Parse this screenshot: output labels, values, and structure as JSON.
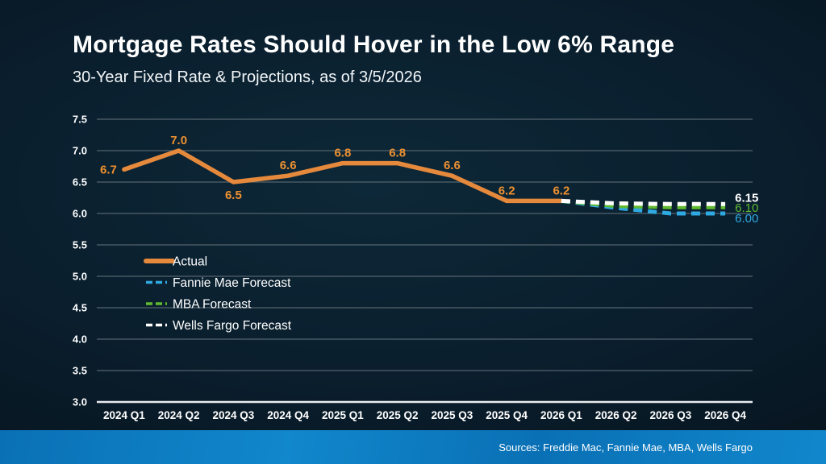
{
  "slide": {
    "title": "Mortgage Rates Should Hover in the Low 6% Range",
    "subtitle": "30-Year Fixed Rate & Projections, as of 3/5/2026",
    "source": "Sources: Freddie Mac, Fannie Mae, MBA, Wells Fargo"
  },
  "colors": {
    "bg_center": "#0D2838",
    "bg_mid": "#0A1E2D",
    "bg_edge": "#07141F",
    "footer_a": "#0A70B5",
    "footer_b": "#1187CC",
    "gridline": "#53636E",
    "axis_line": "#E9EDF0",
    "tick_label": "#FFFFFF",
    "legend_label": "#FFFFFF",
    "actual": "#E5893C",
    "actual_label": "#ED9030",
    "fannie_mae": "#2FA9E1",
    "mba": "#5FBA30",
    "wells_fargo": "#FFFFFF"
  },
  "chart_data": {
    "type": "line",
    "title": "30-Year Fixed Rate & Projections, as of 3/5/2026",
    "xlabel": "",
    "ylabel": "",
    "ylim": [
      3.0,
      7.5
    ],
    "ytick_step": 0.5,
    "grid": true,
    "legend_position": "center-left",
    "categories": [
      "2024 Q1",
      "2024 Q2",
      "2024 Q3",
      "2024 Q4",
      "2025 Q1",
      "2025 Q2",
      "2025 Q3",
      "2025 Q4",
      "2026 Q1",
      "2026 Q2",
      "2026 Q3",
      "2026 Q4"
    ],
    "series": [
      {
        "name": "Actual",
        "color_key": "actual",
        "label_color_key": "actual_label",
        "dashed": false,
        "width": 5.5,
        "values": [
          6.7,
          7.0,
          6.5,
          6.6,
          6.8,
          6.8,
          6.6,
          6.2,
          6.2,
          null,
          null,
          null
        ],
        "point_labels": [
          "6.7",
          "7.0",
          "6.5",
          "6.6",
          "6.8",
          "6.8",
          "6.6",
          "6.2",
          "6.2",
          null,
          null,
          null
        ],
        "label_placement": [
          "left",
          "above",
          "below",
          "above",
          "above",
          "above",
          "above",
          "above",
          "above",
          null,
          null,
          null
        ]
      },
      {
        "name": "Fannie Mae Forecast",
        "color_key": "fannie_mae",
        "dashed": true,
        "width": 5,
        "values": [
          null,
          null,
          null,
          null,
          null,
          null,
          null,
          null,
          6.2,
          6.09,
          6.0,
          6.0
        ],
        "end_label": "6.00",
        "end_label_dy": 11,
        "end_label_bold": false
      },
      {
        "name": "MBA Forecast",
        "color_key": "mba",
        "dashed": true,
        "width": 5,
        "values": [
          null,
          null,
          null,
          null,
          null,
          null,
          null,
          null,
          6.2,
          6.12,
          6.1,
          6.1
        ],
        "end_label": "6.10",
        "end_label_dy": 6,
        "end_label_bold": false
      },
      {
        "name": "Wells Fargo Forecast",
        "color_key": "wells_fargo",
        "dashed": true,
        "width": 5,
        "values": [
          null,
          null,
          null,
          null,
          null,
          null,
          null,
          null,
          6.2,
          6.16,
          6.15,
          6.15
        ],
        "end_label": "6.15",
        "end_label_dy": -3,
        "end_label_bold": true
      }
    ]
  }
}
